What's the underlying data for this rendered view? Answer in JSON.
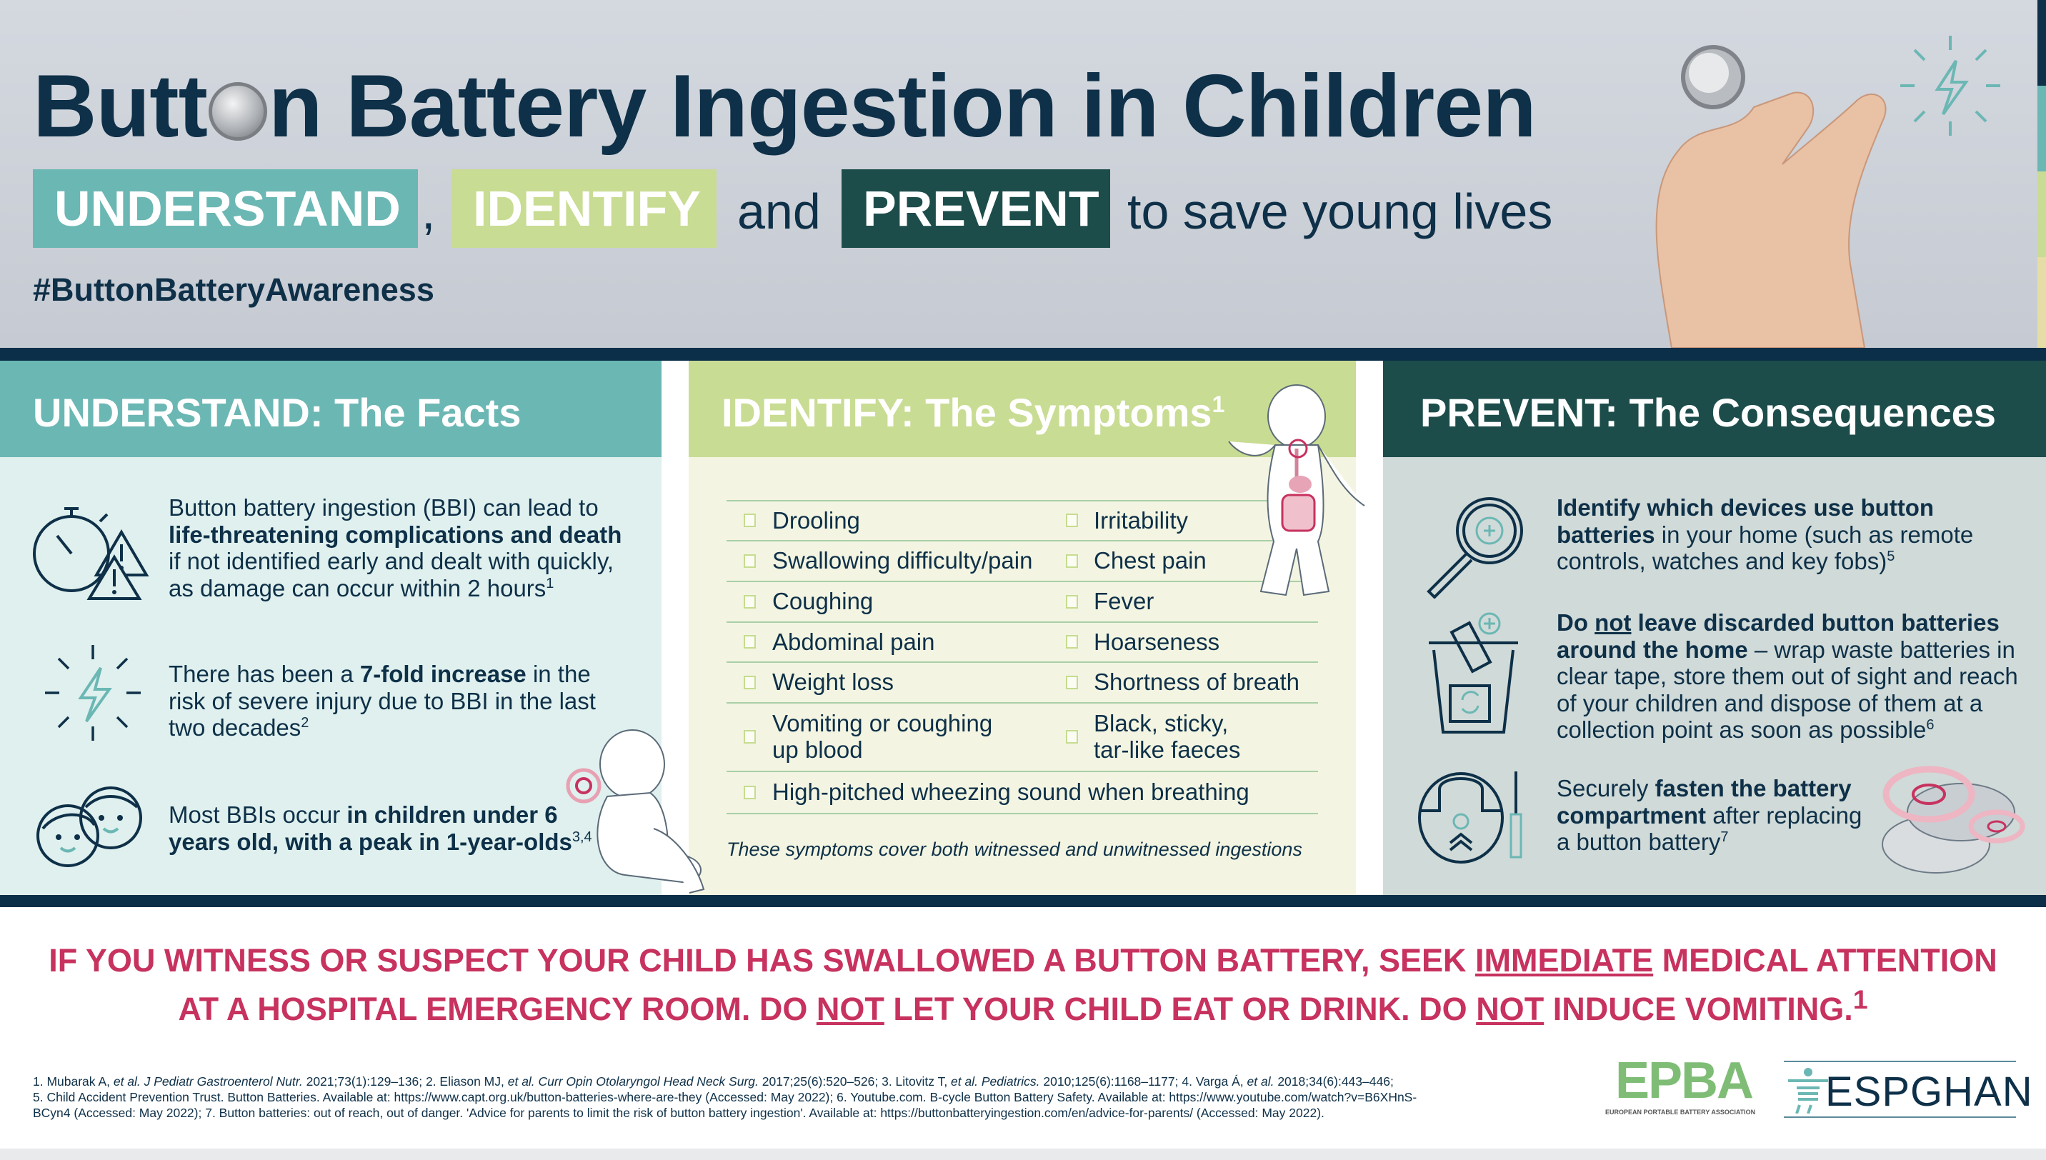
{
  "header": {
    "title_before": "Butt",
    "title_o": "o",
    "title_after": "n Battery Ingestion in Children",
    "tag_understand": "UNDERSTAND",
    "comma": ",",
    "tag_identify": "IDENTIFY",
    "and": "and",
    "tag_prevent": "PREVENT",
    "tail": "to save young lives",
    "hashtag": "#ButtonBatteryAwareness"
  },
  "colors": {
    "navy": "#0e3048",
    "teal": "#6bb7b4",
    "green": "#c9dc93",
    "dark_green": "#1d4d4b",
    "pink": "#c7325f",
    "understand_bg": "#dff0ee",
    "identify_bg": "#f3f5e2",
    "prevent_bg": "#d0dad8"
  },
  "understand": {
    "heading": "UNDERSTAND: The Facts",
    "facts": [
      {
        "icon": "stopwatch-warning-icon",
        "segments": [
          {
            "t": "Button battery ingestion (BBI) can lead to "
          },
          {
            "t": "life-threatening complications and death",
            "b": true
          },
          {
            "t": " if not identified early and dealt with quickly, as damage can occur within 2 hours"
          },
          {
            "t": "1",
            "sup": true
          }
        ]
      },
      {
        "icon": "lightning-burst-icon",
        "segments": [
          {
            "t": "There has been a "
          },
          {
            "t": "7-fold increase",
            "b": true
          },
          {
            "t": " in the risk of severe injury due to BBI in the last two decades"
          },
          {
            "t": "2",
            "sup": true
          }
        ]
      },
      {
        "icon": "children-faces-icon",
        "segments": [
          {
            "t": "Most BBIs occur "
          },
          {
            "t": "in children under 6 years old, with a peak in 1-year-olds",
            "b": true
          },
          {
            "t": "3,4",
            "sup": true
          }
        ]
      }
    ]
  },
  "identify": {
    "heading": "IDENTIFY: The Symptoms",
    "heading_sup": "1",
    "rows": [
      [
        "Drooling",
        "Irritability"
      ],
      [
        "Swallowing difficulty/pain",
        "Chest pain"
      ],
      [
        "Coughing",
        "Fever"
      ],
      [
        "Abdominal pain",
        "Hoarseness"
      ],
      [
        "Weight loss",
        "Shortness of breath"
      ],
      [
        "Vomiting or coughing\nup blood",
        "Black, sticky,\ntar-like faeces"
      ],
      [
        "High-pitched wheezing sound when breathing"
      ]
    ],
    "note": "These symptoms cover both witnessed and unwitnessed ingestions"
  },
  "prevent": {
    "heading": "PREVENT: The Consequences",
    "items": [
      {
        "icon": "magnifier-icon",
        "segments": [
          {
            "t": "Identify which devices use button batteries",
            "b": true
          },
          {
            "t": " in your home (such as remote controls, watches and key fobs)"
          },
          {
            "t": "5",
            "sup": true
          }
        ]
      },
      {
        "icon": "battery-bin-icon",
        "segments": [
          {
            "t": "Do ",
            "b": true
          },
          {
            "t": "not",
            "b": true,
            "u": true
          },
          {
            "t": " leave discarded button batteries around the home",
            "b": true
          },
          {
            "t": " – wrap waste batteries in clear tape, store them out of sight and reach of your children and dispose of them at a collection point as soon as possible"
          },
          {
            "t": "6",
            "sup": true
          }
        ]
      },
      {
        "icon": "battery-compartment-screwdriver-icon",
        "segments": [
          {
            "t": "Securely "
          },
          {
            "t": "fasten the battery compartment",
            "b": true
          },
          {
            "t": " after replacing a button battery"
          },
          {
            "t": "7",
            "sup": true
          }
        ]
      }
    ]
  },
  "warning": {
    "segments": [
      {
        "t": "IF YOU WITNESS OR SUSPECT YOUR CHILD HAS SWALLOWED A BUTTON BATTERY, SEEK "
      },
      {
        "t": "IMMEDIATE",
        "u": true
      },
      {
        "t": " MEDICAL ATTENTION"
      },
      {
        "br": true
      },
      {
        "t": "AT A HOSPITAL EMERGENCY ROOM. DO "
      },
      {
        "t": "NOT",
        "u": true
      },
      {
        "t": " LET YOUR CHILD EAT OR DRINK. DO "
      },
      {
        "t": "NOT",
        "u": true
      },
      {
        "t": " INDUCE VOMITING."
      },
      {
        "t": "1",
        "sup": true
      }
    ]
  },
  "references": {
    "segments": [
      {
        "t": "1. Mubarak A, "
      },
      {
        "t": "et al. J Pediatr Gastroenterol Nutr.",
        "i": true
      },
      {
        "t": " 2021;73(1):129–136; 2. Eliason MJ, "
      },
      {
        "t": "et al. Curr Opin Otolaryngol Head Neck Surg.",
        "i": true
      },
      {
        "t": " 2017;25(6):520–526; 3. Litovitz T, "
      },
      {
        "t": "et al. Pediatrics.",
        "i": true
      },
      {
        "t": " 2010;125(6):1168–1177; 4. Varga Á, "
      },
      {
        "t": "et al.",
        "i": true
      },
      {
        "t": " 2018;34(6):443–446;"
      },
      {
        "br": true
      },
      {
        "t": "5. Child Accident Prevention Trust. Button Batteries. Available at: https://www.capt.org.uk/button-batteries-where-are-they (Accessed: May 2022); 6. Youtube.com. B-cycle Button Battery Safety. Available at: https://www.youtube.com/watch?v=B6XHnS-"
      },
      {
        "br": true
      },
      {
        "t": "BCyn4 (Accessed: May 2022); 7. Button batteries: out of reach, out of danger. 'Advice for parents to limit the risk of button battery ingestion'. Available at: https://buttonbatteryingestion.com/en/advice-for-parents/ (Accessed: May 2022)."
      }
    ]
  },
  "logos": {
    "epba": "EPBA",
    "epba_sub": "EUROPEAN PORTABLE BATTERY ASSOCIATION",
    "espghan": "ESPGHAN"
  }
}
